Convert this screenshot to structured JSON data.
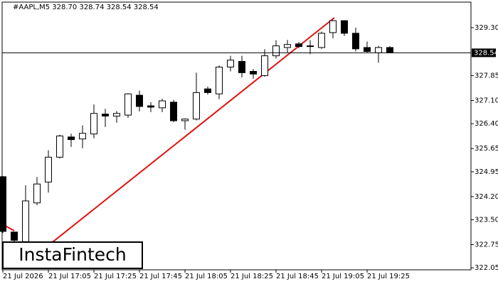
{
  "chart_data": {
    "type": "candlestick",
    "header": "#AAPL,M5  328.70 328.74 328.54 328.54",
    "watermark": "InstaFintech",
    "categories": [
      "21 Jul 2026",
      null,
      null,
      null,
      "21 Jul 17:05",
      null,
      null,
      null,
      "21 Jul 17:25",
      null,
      null,
      null,
      "21 Jul 17:45",
      null,
      null,
      null,
      "21 Jul 18:05",
      null,
      null,
      null,
      "21 Jul 18:25",
      null,
      null,
      null,
      "21 Jul 18:45",
      null,
      null,
      null,
      "21 Jul 19:05",
      null,
      null,
      null,
      "21 Jul 19:25",
      null,
      null
    ],
    "open": [
      324.8,
      323.13,
      322.84,
      324.01,
      324.64,
      325.39,
      326.0,
      325.94,
      326.09,
      326.69,
      326.63,
      326.66,
      327.26,
      326.94,
      326.88,
      327.05,
      326.49,
      326.54,
      327.45,
      327.3,
      328.11,
      328.28,
      327.98,
      327.85,
      328.45,
      328.7,
      328.81,
      328.74,
      328.7,
      329.15,
      329.51,
      329.13,
      328.7,
      328.54,
      328.7
    ],
    "high": [
      324.82,
      323.13,
      324.54,
      324.79,
      325.6,
      326.07,
      326.1,
      326.35,
      326.98,
      326.85,
      326.78,
      327.32,
      327.4,
      327.05,
      327.15,
      327.12,
      326.56,
      327.94,
      327.52,
      328.16,
      328.45,
      328.45,
      328.05,
      328.65,
      328.92,
      328.93,
      328.87,
      328.92,
      329.18,
      329.53,
      329.53,
      329.3,
      328.88,
      328.75,
      328.74
    ],
    "low": [
      323.1,
      322.5,
      322.6,
      323.94,
      324.32,
      325.35,
      325.7,
      325.66,
      325.96,
      326.3,
      326.43,
      326.58,
      326.77,
      326.75,
      326.75,
      326.45,
      326.22,
      326.5,
      327.28,
      327.14,
      327.98,
      327.8,
      327.76,
      327.82,
      328.37,
      328.55,
      328.68,
      328.5,
      328.66,
      328.98,
      329.05,
      328.58,
      328.55,
      328.24,
      328.54
    ],
    "close": [
      323.15,
      322.88,
      324.07,
      324.58,
      325.39,
      326.03,
      325.92,
      326.11,
      326.71,
      326.63,
      326.71,
      327.3,
      326.92,
      326.9,
      327.09,
      326.49,
      326.54,
      327.34,
      327.34,
      328.11,
      328.32,
      327.94,
      327.9,
      328.45,
      328.75,
      328.79,
      328.73,
      328.75,
      329.13,
      329.51,
      329.13,
      328.66,
      328.58,
      328.7,
      328.54
    ],
    "up_color": "#ffffff",
    "down_color": "#000000",
    "edge_color": "#000000",
    "last_price": 328.54,
    "ylim": [
      321.99,
      330.07
    ],
    "yticks": [
      {
        "value": 329.3,
        "label": "329.30"
      },
      {
        "value": 327.85,
        "label": "327.85"
      },
      {
        "value": 327.1,
        "label": "327.10"
      },
      {
        "value": 326.4,
        "label": "326.40"
      },
      {
        "value": 325.65,
        "label": "325.65"
      },
      {
        "value": 324.95,
        "label": "324.95"
      },
      {
        "value": 324.2,
        "label": "324.20"
      },
      {
        "value": 323.5,
        "label": "323.50"
      },
      {
        "value": 322.75,
        "label": "322.75"
      },
      {
        "value": 322.05,
        "label": "322.05"
      }
    ],
    "grid": false
  }
}
